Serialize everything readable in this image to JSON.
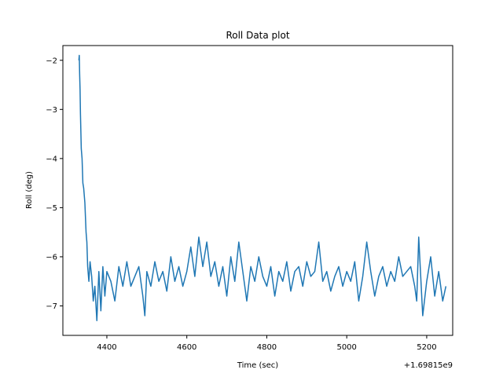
{
  "chart_data": {
    "type": "line",
    "title": "Roll Data plot",
    "xlabel": "Time (sec)",
    "ylabel": "Roll (deg)",
    "x_offset_label": "+1.69815e9",
    "xlim": [
      4290,
      5265
    ],
    "ylim": [
      -7.6,
      -1.7
    ],
    "x_ticks": [
      4400,
      4600,
      4800,
      5000,
      5200
    ],
    "x_tick_labels": [
      "4400",
      "4600",
      "4800",
      "5000",
      "5200"
    ],
    "y_ticks": [
      -2,
      -3,
      -4,
      -5,
      -6,
      -7
    ],
    "y_tick_labels": [
      "−2",
      "−3",
      "−4",
      "−5",
      "−6",
      "−7"
    ],
    "grid": false,
    "line_color": "#1f77b4",
    "series": [
      {
        "x": [
          4330,
          4331,
          4332,
          4333,
          4334,
          4336,
          4338,
          4340,
          4342,
          4345,
          4348,
          4350,
          4352,
          4355,
          4358,
          4362,
          4366,
          4370,
          4375,
          4380,
          4385,
          4390,
          4395,
          4400,
          4410,
          4420,
          4430,
          4440,
          4450,
          4460,
          4470,
          4480,
          4490,
          4495,
          4500,
          4510,
          4520,
          4530,
          4540,
          4550,
          4560,
          4570,
          4580,
          4590,
          4600,
          4610,
          4620,
          4630,
          4640,
          4650,
          4660,
          4670,
          4680,
          4690,
          4700,
          4710,
          4720,
          4730,
          4740,
          4750,
          4760,
          4770,
          4780,
          4790,
          4800,
          4810,
          4820,
          4830,
          4840,
          4850,
          4860,
          4870,
          4880,
          4890,
          4900,
          4910,
          4920,
          4930,
          4940,
          4950,
          4960,
          4970,
          4980,
          4990,
          5000,
          5010,
          5020,
          5030,
          5040,
          5050,
          5060,
          5070,
          5080,
          5090,
          5100,
          5110,
          5120,
          5130,
          5140,
          5150,
          5160,
          5170,
          5175,
          5180,
          5185,
          5190,
          5200,
          5210,
          5220,
          5230,
          5240,
          5248
        ],
        "y": [
          -2.0,
          -1.9,
          -2.3,
          -2.6,
          -3.1,
          -3.8,
          -4.0,
          -4.5,
          -4.6,
          -4.9,
          -5.5,
          -5.7,
          -6.2,
          -6.5,
          -6.1,
          -6.4,
          -6.9,
          -6.6,
          -7.3,
          -6.3,
          -7.1,
          -6.2,
          -6.8,
          -6.3,
          -6.5,
          -6.9,
          -6.2,
          -6.6,
          -6.1,
          -6.6,
          -6.4,
          -6.2,
          -6.8,
          -7.2,
          -6.3,
          -6.6,
          -6.1,
          -6.5,
          -6.3,
          -6.7,
          -6.0,
          -6.5,
          -6.2,
          -6.6,
          -6.3,
          -5.8,
          -6.4,
          -5.6,
          -6.2,
          -5.7,
          -6.4,
          -6.1,
          -6.6,
          -6.2,
          -6.8,
          -6.0,
          -6.5,
          -5.7,
          -6.3,
          -6.9,
          -6.2,
          -6.5,
          -6.0,
          -6.4,
          -6.6,
          -6.2,
          -6.8,
          -6.3,
          -6.5,
          -6.1,
          -6.7,
          -6.3,
          -6.2,
          -6.6,
          -6.1,
          -6.4,
          -6.3,
          -5.7,
          -6.5,
          -6.3,
          -6.7,
          -6.4,
          -6.2,
          -6.6,
          -6.3,
          -6.5,
          -6.1,
          -6.9,
          -6.4,
          -5.7,
          -6.3,
          -6.8,
          -6.4,
          -6.2,
          -6.6,
          -6.3,
          -6.5,
          -6.0,
          -6.4,
          -6.3,
          -6.2,
          -6.6,
          -6.9,
          -5.6,
          -6.4,
          -7.2,
          -6.5,
          -6.0,
          -6.8,
          -6.3,
          -6.9,
          -6.6
        ]
      }
    ]
  }
}
